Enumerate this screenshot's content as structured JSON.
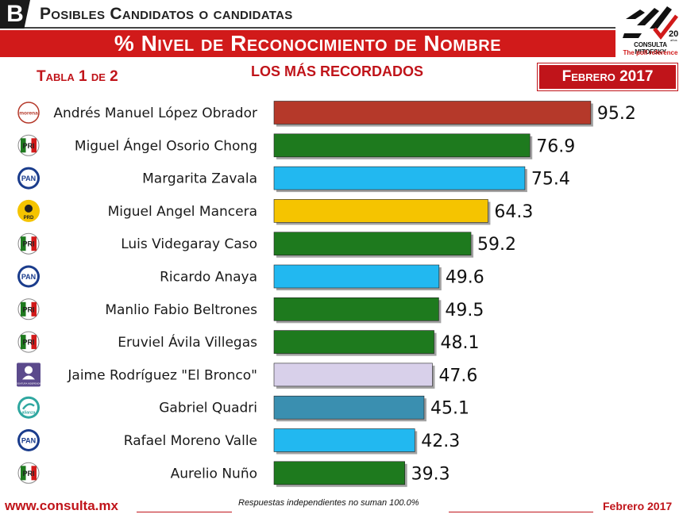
{
  "header": {
    "section_letter": "B",
    "section_title": "Posibles Candidatos o candidatas",
    "main_title": "% Nivel de Reconocimiento de Nombre",
    "table_label": "Tabla 1 de 2",
    "subtitle": "LOS MÁS RECORDADOS",
    "date_box": "Febrero 2017"
  },
  "logo": {
    "anniversary": "20",
    "anniversary_suffix": "años",
    "name": "CONSULTA MITOFSKY",
    "tagline": "The poll reference"
  },
  "colors": {
    "morena": "#b5392a",
    "pri": "#1e7a1e",
    "pan": "#22b8f0",
    "prd": "#f5c400",
    "independiente": "#d8d0ea",
    "panal": "#3a8fb0",
    "accent": "#c0141a"
  },
  "party_icons": {
    "morena": "morena",
    "pri": "PRI",
    "pan": "PAN",
    "prd": "PRD",
    "independiente": "CANDIDATURA INDEPENDIENTE",
    "panal": "alianza"
  },
  "chart_data": {
    "type": "bar",
    "orientation": "horizontal",
    "title": "% Nivel de Reconocimiento de Nombre",
    "subtitle": "LOS MÁS RECORDADOS",
    "categories": [
      "Andrés Manuel López Obrador",
      "Miguel Ángel Osorio Chong",
      "Margarita Zavala",
      "Miguel Angel Mancera",
      "Luis Videgaray Caso",
      "Ricardo Anaya",
      "Manlio Fabio Beltrones",
      "Eruviel Ávila Villegas",
      "Jaime Rodríguez \"El Bronco\"",
      "Gabriel Quadri",
      "Rafael Moreno Valle",
      "Aurelio Nuño"
    ],
    "values": [
      95.2,
      76.9,
      75.4,
      64.3,
      59.2,
      49.6,
      49.5,
      48.1,
      47.6,
      45.1,
      42.3,
      39.3
    ],
    "value_labels": [
      "95.2",
      "76.9",
      "75.4",
      "64.3",
      "59.2",
      "49.6",
      "49.5",
      "48.1",
      "47.6",
      "45.1",
      "42.3",
      "39.3"
    ],
    "parties": [
      "morena",
      "pri",
      "pan",
      "prd",
      "pri",
      "pan",
      "pri",
      "pri",
      "independiente",
      "panal",
      "pan",
      "pri"
    ],
    "xlim": [
      0,
      100
    ],
    "grid": false,
    "legend": "none"
  },
  "footer": {
    "url": "www.consulta.mx",
    "note": "Respuestas independientes no suman 100.0%",
    "date": "Febrero 2017"
  }
}
